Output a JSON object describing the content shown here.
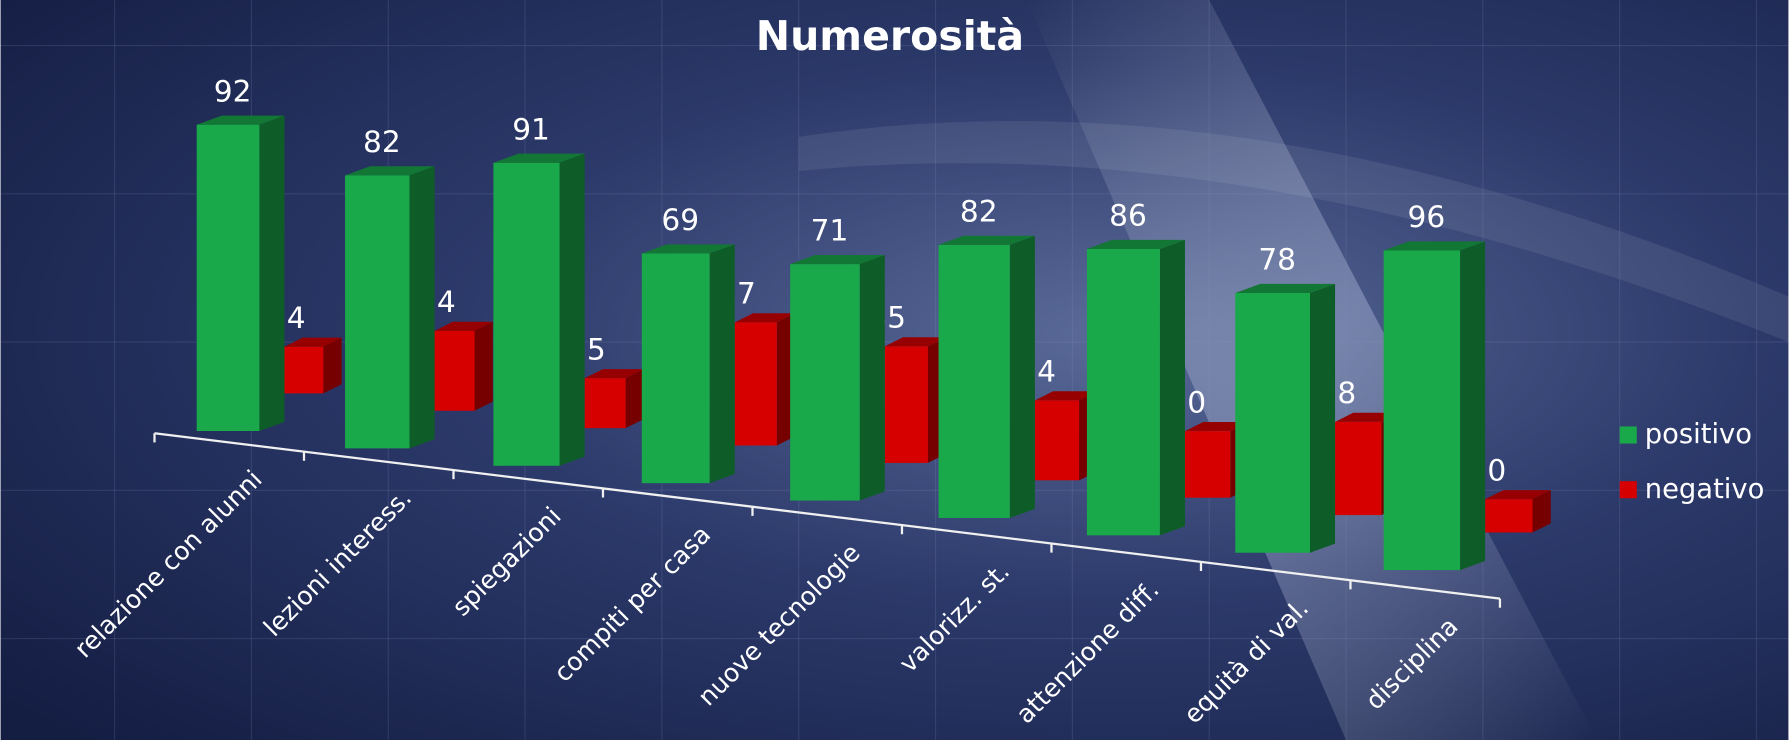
{
  "chart_data": {
    "type": "bar3d",
    "title": "Numerosità",
    "categories": [
      "relazione con alunni",
      "lezioni interess.",
      "spiegazioni",
      "compiti per casa",
      "nuove tecnologie",
      "valorizz. st.",
      "attenzione diff.",
      "equità di val.",
      "disciplina"
    ],
    "series": [
      {
        "name": "positivo",
        "color": "#19a94a",
        "values": [
          92,
          82,
          91,
          69,
          71,
          82,
          86,
          78,
          96
        ]
      },
      {
        "name": "negativo",
        "color": "#d60000",
        "values": [
          14,
          24,
          15,
          37,
          35,
          24,
          20,
          28,
          10
        ]
      }
    ],
    "legend": "right"
  }
}
